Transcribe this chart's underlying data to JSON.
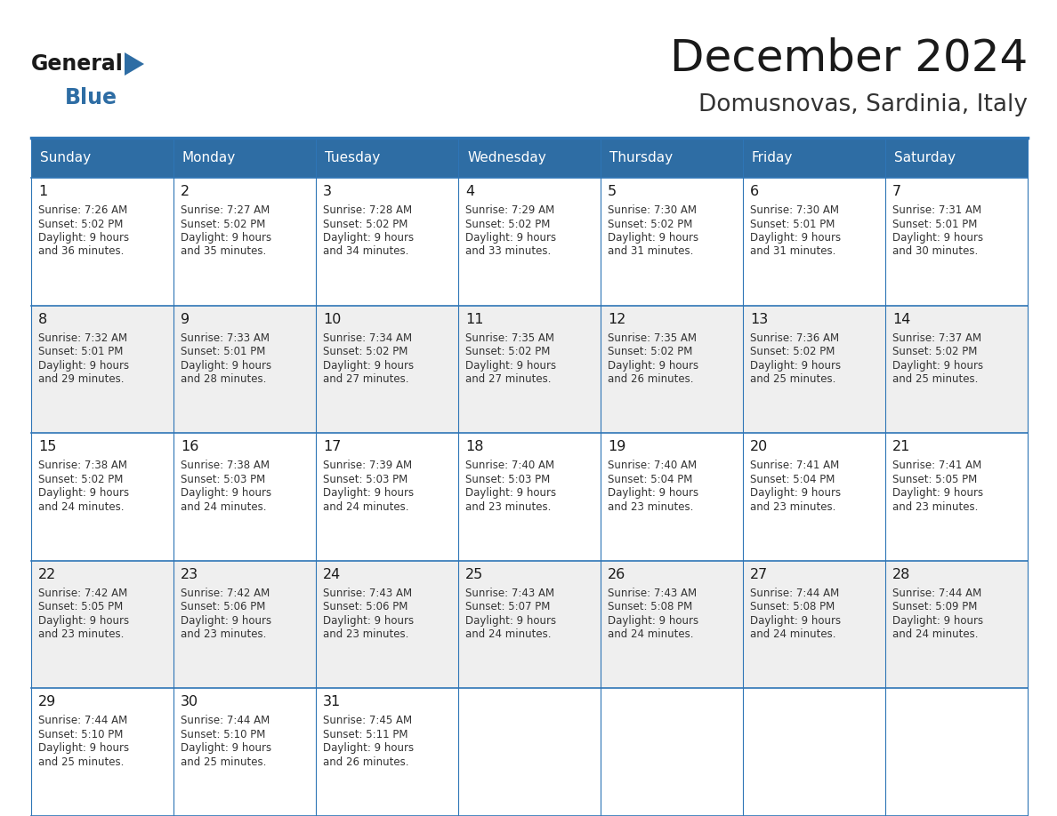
{
  "title": "December 2024",
  "subtitle": "Domusnovas, Sardinia, Italy",
  "days_of_week": [
    "Sunday",
    "Monday",
    "Tuesday",
    "Wednesday",
    "Thursday",
    "Friday",
    "Saturday"
  ],
  "header_bg": "#2E6DA4",
  "header_text": "#FFFFFF",
  "row_bg": [
    "#FFFFFF",
    "#EFEFEF"
  ],
  "border_color": "#2E75B6",
  "title_color": "#1a1a1a",
  "subtitle_color": "#333333",
  "day_num_color": "#1a1a1a",
  "cell_text_color": "#333333",
  "logo_general_color": "#1a1a1a",
  "logo_blue_color": "#2E6DA4",
  "logo_triangle_color": "#2E6DA4",
  "calendar": [
    [
      {
        "day": 1,
        "sunrise": "7:26 AM",
        "sunset": "5:02 PM",
        "daylight": "9 hours",
        "daylight2": "and 36 minutes."
      },
      {
        "day": 2,
        "sunrise": "7:27 AM",
        "sunset": "5:02 PM",
        "daylight": "9 hours",
        "daylight2": "and 35 minutes."
      },
      {
        "day": 3,
        "sunrise": "7:28 AM",
        "sunset": "5:02 PM",
        "daylight": "9 hours",
        "daylight2": "and 34 minutes."
      },
      {
        "day": 4,
        "sunrise": "7:29 AM",
        "sunset": "5:02 PM",
        "daylight": "9 hours",
        "daylight2": "and 33 minutes."
      },
      {
        "day": 5,
        "sunrise": "7:30 AM",
        "sunset": "5:02 PM",
        "daylight": "9 hours",
        "daylight2": "and 31 minutes."
      },
      {
        "day": 6,
        "sunrise": "7:30 AM",
        "sunset": "5:01 PM",
        "daylight": "9 hours",
        "daylight2": "and 31 minutes."
      },
      {
        "day": 7,
        "sunrise": "7:31 AM",
        "sunset": "5:01 PM",
        "daylight": "9 hours",
        "daylight2": "and 30 minutes."
      }
    ],
    [
      {
        "day": 8,
        "sunrise": "7:32 AM",
        "sunset": "5:01 PM",
        "daylight": "9 hours",
        "daylight2": "and 29 minutes."
      },
      {
        "day": 9,
        "sunrise": "7:33 AM",
        "sunset": "5:01 PM",
        "daylight": "9 hours",
        "daylight2": "and 28 minutes."
      },
      {
        "day": 10,
        "sunrise": "7:34 AM",
        "sunset": "5:02 PM",
        "daylight": "9 hours",
        "daylight2": "and 27 minutes."
      },
      {
        "day": 11,
        "sunrise": "7:35 AM",
        "sunset": "5:02 PM",
        "daylight": "9 hours",
        "daylight2": "and 27 minutes."
      },
      {
        "day": 12,
        "sunrise": "7:35 AM",
        "sunset": "5:02 PM",
        "daylight": "9 hours",
        "daylight2": "and 26 minutes."
      },
      {
        "day": 13,
        "sunrise": "7:36 AM",
        "sunset": "5:02 PM",
        "daylight": "9 hours",
        "daylight2": "and 25 minutes."
      },
      {
        "day": 14,
        "sunrise": "7:37 AM",
        "sunset": "5:02 PM",
        "daylight": "9 hours",
        "daylight2": "and 25 minutes."
      }
    ],
    [
      {
        "day": 15,
        "sunrise": "7:38 AM",
        "sunset": "5:02 PM",
        "daylight": "9 hours",
        "daylight2": "and 24 minutes."
      },
      {
        "day": 16,
        "sunrise": "7:38 AM",
        "sunset": "5:03 PM",
        "daylight": "9 hours",
        "daylight2": "and 24 minutes."
      },
      {
        "day": 17,
        "sunrise": "7:39 AM",
        "sunset": "5:03 PM",
        "daylight": "9 hours",
        "daylight2": "and 24 minutes."
      },
      {
        "day": 18,
        "sunrise": "7:40 AM",
        "sunset": "5:03 PM",
        "daylight": "9 hours",
        "daylight2": "and 23 minutes."
      },
      {
        "day": 19,
        "sunrise": "7:40 AM",
        "sunset": "5:04 PM",
        "daylight": "9 hours",
        "daylight2": "and 23 minutes."
      },
      {
        "day": 20,
        "sunrise": "7:41 AM",
        "sunset": "5:04 PM",
        "daylight": "9 hours",
        "daylight2": "and 23 minutes."
      },
      {
        "day": 21,
        "sunrise": "7:41 AM",
        "sunset": "5:05 PM",
        "daylight": "9 hours",
        "daylight2": "and 23 minutes."
      }
    ],
    [
      {
        "day": 22,
        "sunrise": "7:42 AM",
        "sunset": "5:05 PM",
        "daylight": "9 hours",
        "daylight2": "and 23 minutes."
      },
      {
        "day": 23,
        "sunrise": "7:42 AM",
        "sunset": "5:06 PM",
        "daylight": "9 hours",
        "daylight2": "and 23 minutes."
      },
      {
        "day": 24,
        "sunrise": "7:43 AM",
        "sunset": "5:06 PM",
        "daylight": "9 hours",
        "daylight2": "and 23 minutes."
      },
      {
        "day": 25,
        "sunrise": "7:43 AM",
        "sunset": "5:07 PM",
        "daylight": "9 hours",
        "daylight2": "and 24 minutes."
      },
      {
        "day": 26,
        "sunrise": "7:43 AM",
        "sunset": "5:08 PM",
        "daylight": "9 hours",
        "daylight2": "and 24 minutes."
      },
      {
        "day": 27,
        "sunrise": "7:44 AM",
        "sunset": "5:08 PM",
        "daylight": "9 hours",
        "daylight2": "and 24 minutes."
      },
      {
        "day": 28,
        "sunrise": "7:44 AM",
        "sunset": "5:09 PM",
        "daylight": "9 hours",
        "daylight2": "and 24 minutes."
      }
    ],
    [
      {
        "day": 29,
        "sunrise": "7:44 AM",
        "sunset": "5:10 PM",
        "daylight": "9 hours",
        "daylight2": "and 25 minutes."
      },
      {
        "day": 30,
        "sunrise": "7:44 AM",
        "sunset": "5:10 PM",
        "daylight": "9 hours",
        "daylight2": "and 25 minutes."
      },
      {
        "day": 31,
        "sunrise": "7:45 AM",
        "sunset": "5:11 PM",
        "daylight": "9 hours",
        "daylight2": "and 26 minutes."
      },
      null,
      null,
      null,
      null
    ]
  ]
}
